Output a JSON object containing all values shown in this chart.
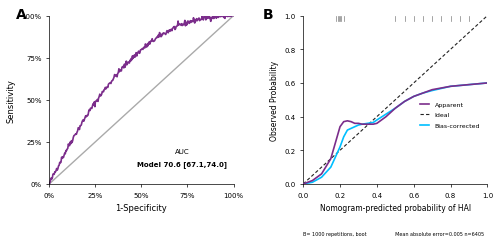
{
  "panel_a_label": "A",
  "panel_b_label": "B",
  "roc_color": "#7B2D8B",
  "roc_lw": 1.2,
  "diag_color": "#AAAAAA",
  "diag_lw": 1.0,
  "auc_text_line1": "AUC",
  "auc_text_line2": "Model 70.6 [67.1,74.0]",
  "xlabel_a": "1-Specificity",
  "ylabel_a": "Sensitivity",
  "xticks_a": [
    0,
    25,
    50,
    75,
    100
  ],
  "xticklabels_a": [
    "0%",
    "25%",
    "50%",
    "75%",
    "100%"
  ],
  "yticks_a": [
    0,
    25,
    50,
    75,
    100
  ],
  "yticklabels_a": [
    "0%",
    "25%",
    "50%",
    "75%",
    "100%"
  ],
  "apparent_color": "#7B2D8B",
  "bias_corrected_color": "#00BFFF",
  "ideal_color": "#222222",
  "xlabel_b": "Nomogram-predicted probability of HAI",
  "ylabel_b": "Observed Probability",
  "footnote_b": "B= 1000 repetitions, boot                   Mean absolute error=0.005 n=6405",
  "legend_apparent": "Apparent",
  "legend_ideal": "Ideal",
  "legend_bias_corrected": "Bias-corrected",
  "bg_color": "#FFFFFF"
}
